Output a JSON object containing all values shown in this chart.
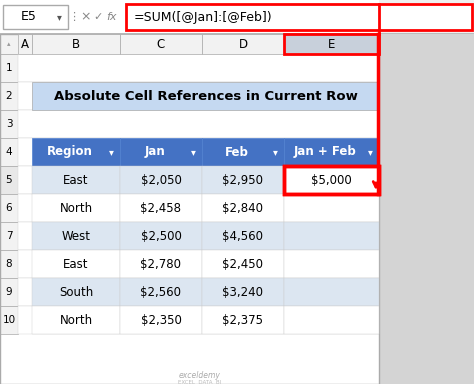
{
  "title": "Absolute Cell References in Current Row",
  "formula_bar_cell": "E5",
  "formula_bar_formula": "=SUM([@Jan]:[@Feb])",
  "col_letters": [
    "A",
    "B",
    "C",
    "D",
    "E"
  ],
  "table_headers": [
    "Region",
    "Jan",
    "Feb",
    "Jan + Feb"
  ],
  "table_data": [
    [
      "East",
      "$2,050",
      "$2,950",
      "$5,000"
    ],
    [
      "North",
      "$2,458",
      "$2,840",
      ""
    ],
    [
      "West",
      "$2,500",
      "$4,560",
      ""
    ],
    [
      "East",
      "$2,780",
      "$2,450",
      ""
    ],
    [
      "South",
      "$2,560",
      "$3,240",
      ""
    ],
    [
      "North",
      "$2,350",
      "$2,375",
      ""
    ]
  ],
  "header_bg": "#4472C4",
  "header_fg": "#FFFFFF",
  "row_bg_even": "#DCE6F1",
  "row_bg_odd": "#FFFFFF",
  "title_bg": "#C5D9F1",
  "outer_bg": "#D4D4D4",
  "formula_bar_bg": "#F0F0F0",
  "cell_e5_bg": "#FFFFFF",
  "red": "#FF0000",
  "grid_dark": "#999999",
  "grid_light": "#CCCCCC",
  "watermark": "exceldemy\nEXCEL  DATA  BI"
}
